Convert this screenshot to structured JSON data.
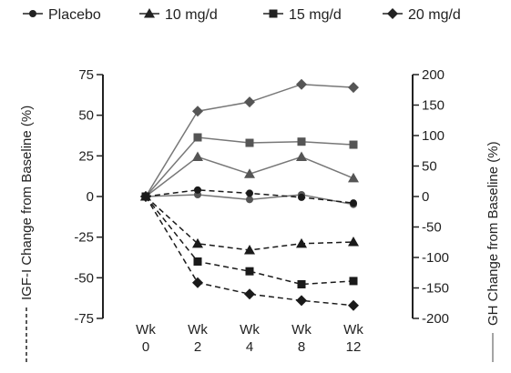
{
  "chart_data": {
    "type": "line",
    "categories": [
      "Wk 0",
      "Wk 2",
      "Wk 4",
      "Wk 8",
      "Wk 12"
    ],
    "x_tick_lines": [
      [
        "Wk",
        "0"
      ],
      [
        "Wk",
        "2"
      ],
      [
        "Wk",
        "4"
      ],
      [
        "Wk",
        "8"
      ],
      [
        "Wk",
        "12"
      ]
    ],
    "y_left": {
      "label": "IGF-I Change from Baseline (%)",
      "range": [
        -75,
        75
      ],
      "ticks": [
        75,
        50,
        25,
        0,
        -25,
        -50,
        -75
      ],
      "tick_labels": [
        "75",
        "50",
        "25",
        "0",
        "-25",
        "-50",
        "-75"
      ]
    },
    "y_right": {
      "label": "GH Change from Baseline (%)",
      "range": [
        -200,
        200
      ],
      "ticks": [
        200,
        150,
        100,
        50,
        0,
        -50,
        -100,
        -150,
        -200
      ],
      "tick_labels": [
        "200",
        "150",
        "100",
        "50",
        "0",
        "-50",
        "-100",
        "-150",
        "-200"
      ]
    },
    "legend_position": "top",
    "legend": [
      "Placebo",
      "10 mg/d",
      "15 mg/d",
      "20 mg/d"
    ],
    "series": [
      {
        "name": "Placebo",
        "marker": "circle",
        "axis": "right",
        "style": "solid",
        "color": "#777777",
        "values": [
          0,
          3,
          -5,
          3,
          -13
        ]
      },
      {
        "name": "10 mg/d",
        "marker": "triangle",
        "axis": "right",
        "style": "solid",
        "color": "#777777",
        "values": [
          0,
          65,
          37,
          65,
          30
        ]
      },
      {
        "name": "15 mg/d",
        "marker": "square",
        "axis": "right",
        "style": "solid",
        "color": "#777777",
        "values": [
          0,
          97,
          88,
          90,
          85
        ]
      },
      {
        "name": "20 mg/d",
        "marker": "diamond",
        "axis": "right",
        "style": "solid",
        "color": "#777777",
        "values": [
          0,
          140,
          155,
          184,
          179
        ]
      },
      {
        "name": "Placebo",
        "marker": "circle",
        "axis": "left",
        "style": "dashed",
        "color": "#1a1a1a",
        "values": [
          0,
          4,
          2,
          -0.5,
          -4
        ]
      },
      {
        "name": "10 mg/d",
        "marker": "triangle",
        "axis": "left",
        "style": "dashed",
        "color": "#1a1a1a",
        "values": [
          0,
          -29,
          -33,
          -29,
          -28
        ]
      },
      {
        "name": "15 mg/d",
        "marker": "square",
        "axis": "left",
        "style": "dashed",
        "color": "#1a1a1a",
        "values": [
          0,
          -40,
          -46,
          -54,
          -52
        ]
      },
      {
        "name": "20 mg/d",
        "marker": "diamond",
        "axis": "left",
        "style": "dashed",
        "color": "#1a1a1a",
        "values": [
          0,
          -53,
          -60,
          -64,
          -67
        ]
      }
    ],
    "grid": false
  }
}
